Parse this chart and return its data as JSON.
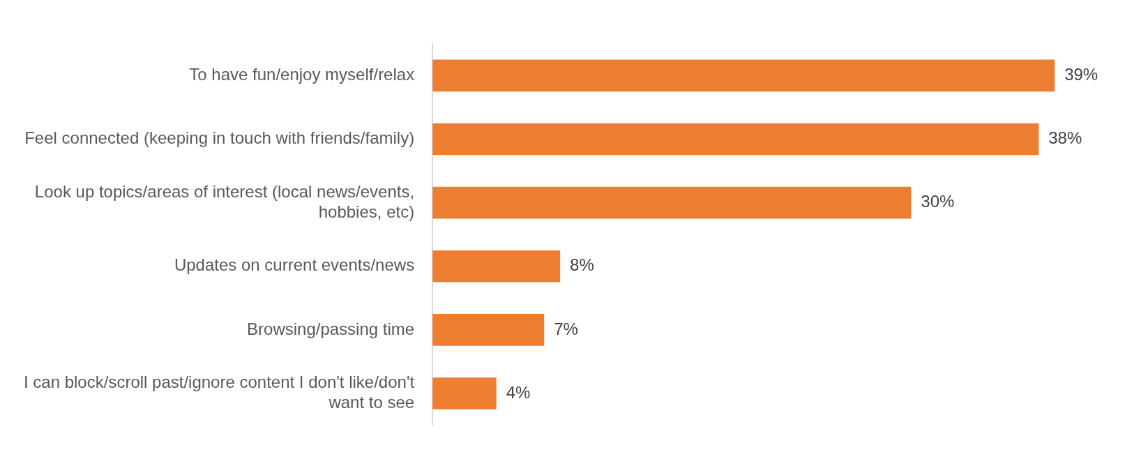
{
  "chart_data": {
    "type": "bar",
    "orientation": "horizontal",
    "categories": [
      "To have fun/enjoy myself/relax",
      "Feel connected (keeping in touch with friends/family)",
      "Look up topics/areas of interest (local news/events, hobbies, etc)",
      "Updates on current events/news",
      "Browsing/passing time",
      "I can block/scroll past/ignore content I don't like/don't want to see"
    ],
    "values": [
      39,
      38,
      30,
      8,
      7,
      4
    ],
    "color": "#ed7d31",
    "data_labels": true,
    "value_labels": [
      "39%",
      "38%",
      "30%",
      "8%",
      "7%",
      "4%"
    ],
    "legend": false
  }
}
